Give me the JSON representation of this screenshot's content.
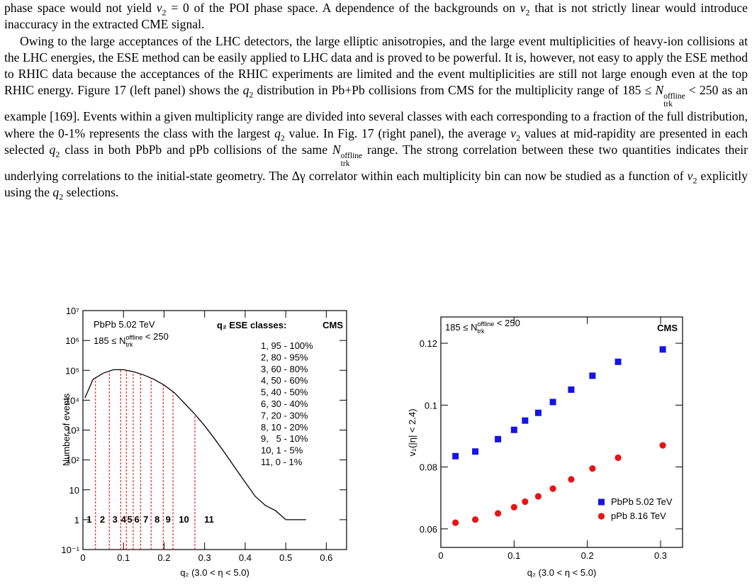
{
  "paragraphs": [
    [
      "phase space would not yield ",
      {
        "math": "v",
        "sub": "2"
      },
      " = 0 of the POI phase space. A dependence of the backgrounds on ",
      {
        "math": "v",
        "sub": "2"
      },
      " that is not strictly linear would introduce inaccuracy in the extracted CME signal."
    ],
    [
      "Owing to the large acceptances of the LHC detectors, the large elliptic anisotropies, and the large event multiplicities of heavy-ion collisions at the LHC energies, the ESE method can be easily applied to LHC data and is proved to be powerful. It is, however, not easy to apply the ESE method to RHIC data because the acceptances of the RHIC experiments are limited and the event multiplicities are still not large enough even at the top RHIC energy. Figure 17 (left panel) shows the ",
      {
        "math": "q",
        "sub": "2"
      },
      " distribution in Pb+Pb collisions from CMS for the multiplicity range of 185 ≤ ",
      {
        "math": "N",
        "sub": "trk",
        "sup": "offline"
      },
      " < 250 as an example [169]. Events within a given multiplicity range are divided into several classes with each corresponding to a fraction of the full distribution, where the 0-1% represents the class with the largest ",
      {
        "math": "q",
        "sub": "2"
      },
      " value. In Fig. 17 (right panel), the average ",
      {
        "math": "v",
        "sub": "2"
      },
      " values at mid-rapidity are presented in each selected ",
      {
        "math": "q",
        "sub": "2"
      },
      " class in both PbPb and pPb collisions of the same ",
      {
        "math": "N",
        "sub": "trk",
        "sup": "offline"
      },
      " range. The strong correlation between these two quantities indicates their underlying correlations to the initial-state geometry. The Δγ correlator within each multiplicity bin can now be studied as a function of ",
      {
        "math": "v",
        "sub": "2"
      },
      " explicitly using the ",
      {
        "math": "q",
        "sub": "2"
      },
      " selections."
    ]
  ],
  "chart_data": [
    {
      "type": "line",
      "annotation": "PbPb 5.02 TeV",
      "range_label": [
        "185 ≤ ",
        {
          "math": "N",
          "sub": "trk",
          "sup": "offline"
        },
        " < 250"
      ],
      "legend_title": "q₂ ESE classes:",
      "experiment": "CMS",
      "class_list": [
        "1, 95 - 100%",
        "2, 80 - 95%",
        "3, 60 - 80%",
        "4, 50 - 60%",
        "5, 40 - 50%",
        "6, 30 - 40%",
        "7, 20 - 30%",
        "8, 10 - 20%",
        "9,   5 - 10%",
        "10, 1 - 5%",
        "11, 0 - 1%"
      ],
      "class_labels": [
        "1",
        "2",
        "3",
        "4",
        "5",
        "6",
        "7",
        "8",
        "9",
        "10",
        "11"
      ],
      "class_boundaries": [
        0.031,
        0.065,
        0.093,
        0.107,
        0.124,
        0.142,
        0.168,
        0.198,
        0.222,
        0.276
      ],
      "boundary_color": "#e00000",
      "x": [
        0.005,
        0.025,
        0.05,
        0.075,
        0.1,
        0.125,
        0.15,
        0.175,
        0.2,
        0.225,
        0.25,
        0.275,
        0.3,
        0.325,
        0.35,
        0.375,
        0.4,
        0.425,
        0.45,
        0.475,
        0.5,
        0.525,
        0.55
      ],
      "values": [
        12000,
        50000,
        80000,
        105000,
        105000,
        90000,
        70000,
        50000,
        32000,
        18000,
        8000,
        3500,
        1400,
        500,
        170,
        55,
        18,
        6,
        3,
        2,
        1,
        1,
        1
      ],
      "color": "#000000",
      "log_y": true,
      "xlim": [
        0,
        0.65
      ],
      "ylim": [
        0.1,
        10000000
      ],
      "xticks": [
        0,
        0.1,
        0.2,
        0.3,
        0.4,
        0.5,
        0.6
      ],
      "yticks": [
        {
          "value": 0.1,
          "label": "10⁻¹"
        },
        1,
        10,
        {
          "value": 100,
          "label": "10²"
        },
        {
          "value": 1000,
          "label": "10³"
        },
        {
          "value": 10000,
          "label": "10⁴"
        },
        {
          "value": 100000,
          "label": "10⁵"
        },
        {
          "value": 1000000,
          "label": "10⁶"
        },
        {
          "value": 10000000,
          "label": "10⁷"
        }
      ],
      "x_label": "q₂ (3.0 < η < 5.0)",
      "y_label": "Number of events"
    },
    {
      "type": "scatter",
      "range_label": [
        "185 ≤ ",
        {
          "math": "N",
          "sub": "trk",
          "sup": "offline"
        },
        " < 250"
      ],
      "experiment": "CMS",
      "series": [
        {
          "name": "PbPb 5.02 TeV",
          "color": "#1414e6",
          "marker": "square",
          "x": [
            0.02,
            0.047,
            0.078,
            0.1,
            0.115,
            0.133,
            0.153,
            0.178,
            0.207,
            0.242,
            0.303
          ],
          "values": [
            0.0835,
            0.085,
            0.089,
            0.092,
            0.095,
            0.0975,
            0.101,
            0.105,
            0.1095,
            0.114,
            0.118
          ]
        },
        {
          "name": "pPb 8.16 TeV",
          "color": "#e61414",
          "marker": "circle",
          "x": [
            0.02,
            0.047,
            0.078,
            0.1,
            0.115,
            0.133,
            0.153,
            0.178,
            0.207,
            0.242,
            0.303
          ],
          "values": [
            0.062,
            0.063,
            0.065,
            0.067,
            0.0688,
            0.0705,
            0.073,
            0.076,
            0.0795,
            0.083,
            0.087
          ]
        }
      ],
      "xlim": [
        0,
        0.33
      ],
      "ylim": [
        0.054,
        0.1285
      ],
      "xticks": [
        0,
        0.1,
        0.2,
        0.3
      ],
      "yticks": [
        0.06,
        0.08,
        0.1,
        0.12
      ],
      "x_label": "q₂ (3.0 < η < 5.0)",
      "y_label": "v₂(|η| < 2.4)"
    }
  ]
}
